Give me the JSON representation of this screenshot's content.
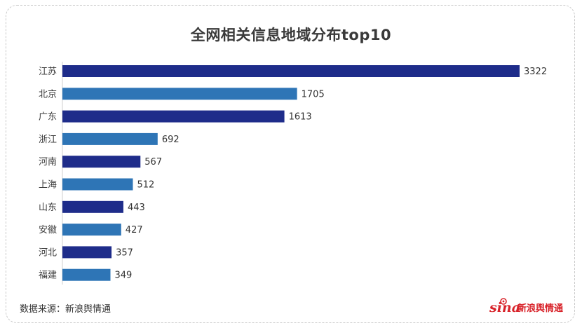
{
  "chart_data": {
    "type": "bar",
    "orientation": "horizontal",
    "title": "全网相关信息地域分布top10",
    "categories": [
      "江苏",
      "北京",
      "广东",
      "浙江",
      "河南",
      "上海",
      "山东",
      "安徽",
      "河北",
      "福建"
    ],
    "values": [
      3322,
      1705,
      1613,
      692,
      567,
      512,
      443,
      427,
      357,
      349
    ],
    "xlim": [
      0,
      3322
    ],
    "grid": false,
    "legend": "none",
    "colors": [
      "#1e2c8a",
      "#2e75b6"
    ]
  },
  "footer": {
    "source": "数据来源：新浪舆情通",
    "logo_sina": "sina",
    "logo_text": "新浪舆情通"
  }
}
